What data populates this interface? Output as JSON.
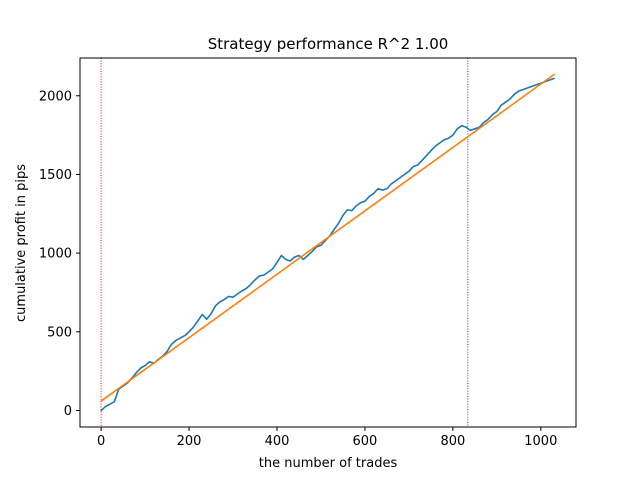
{
  "chart_data": {
    "type": "line",
    "title": "Strategy performance R^2 1.00",
    "xlabel": "the number of trades",
    "ylabel": "cumulative profit in pips",
    "xlim": [
      -48,
      1080
    ],
    "ylim": [
      -105,
      2240
    ],
    "x_ticks": [
      0,
      200,
      400,
      600,
      800,
      1000
    ],
    "y_ticks": [
      0,
      500,
      1000,
      1500,
      2000
    ],
    "grid": false,
    "legend": "none",
    "vlines": [
      {
        "x": 0,
        "color": "#ff0000",
        "style": "dotted"
      },
      {
        "x": 834,
        "color": "#3d2bd9",
        "style": "dotted"
      }
    ],
    "series": [
      {
        "color": "#1f77b4",
        "x": [
          0,
          10,
          20,
          30,
          40,
          50,
          60,
          70,
          80,
          90,
          100,
          110,
          120,
          130,
          140,
          150,
          160,
          170,
          180,
          190,
          200,
          210,
          220,
          230,
          240,
          250,
          260,
          270,
          280,
          290,
          300,
          310,
          320,
          330,
          340,
          350,
          360,
          370,
          380,
          390,
          400,
          410,
          420,
          430,
          440,
          450,
          460,
          470,
          480,
          490,
          500,
          510,
          520,
          530,
          540,
          550,
          560,
          570,
          580,
          590,
          600,
          610,
          620,
          630,
          640,
          650,
          660,
          670,
          680,
          690,
          700,
          710,
          720,
          730,
          740,
          750,
          760,
          770,
          780,
          790,
          800,
          810,
          820,
          830,
          840,
          850,
          860,
          870,
          880,
          890,
          900,
          910,
          920,
          930,
          940,
          950,
          960,
          970,
          980,
          990,
          1000,
          1010,
          1020,
          1030
        ],
        "values": [
          0,
          25,
          40,
          55,
          135,
          155,
          175,
          205,
          240,
          270,
          285,
          310,
          300,
          325,
          345,
          375,
          420,
          445,
          460,
          475,
          500,
          530,
          570,
          610,
          580,
          615,
          665,
          690,
          705,
          725,
          720,
          740,
          760,
          775,
          800,
          830,
          855,
          860,
          880,
          900,
          940,
          985,
          960,
          950,
          975,
          985,
          960,
          985,
          1010,
          1040,
          1050,
          1080,
          1110,
          1150,
          1190,
          1240,
          1275,
          1270,
          1300,
          1320,
          1330,
          1360,
          1380,
          1410,
          1400,
          1410,
          1440,
          1460,
          1480,
          1500,
          1520,
          1550,
          1560,
          1590,
          1620,
          1650,
          1680,
          1700,
          1720,
          1730,
          1750,
          1790,
          1810,
          1800,
          1780,
          1790,
          1800,
          1830,
          1850,
          1880,
          1900,
          1940,
          1960,
          1980,
          2010,
          2030,
          2040,
          2050,
          2060,
          2070,
          2080,
          2090,
          2100,
          2110
        ]
      },
      {
        "color": "#ff7f0e",
        "x": [
          0,
          1030
        ],
        "values": [
          60,
          2135
        ]
      }
    ]
  }
}
